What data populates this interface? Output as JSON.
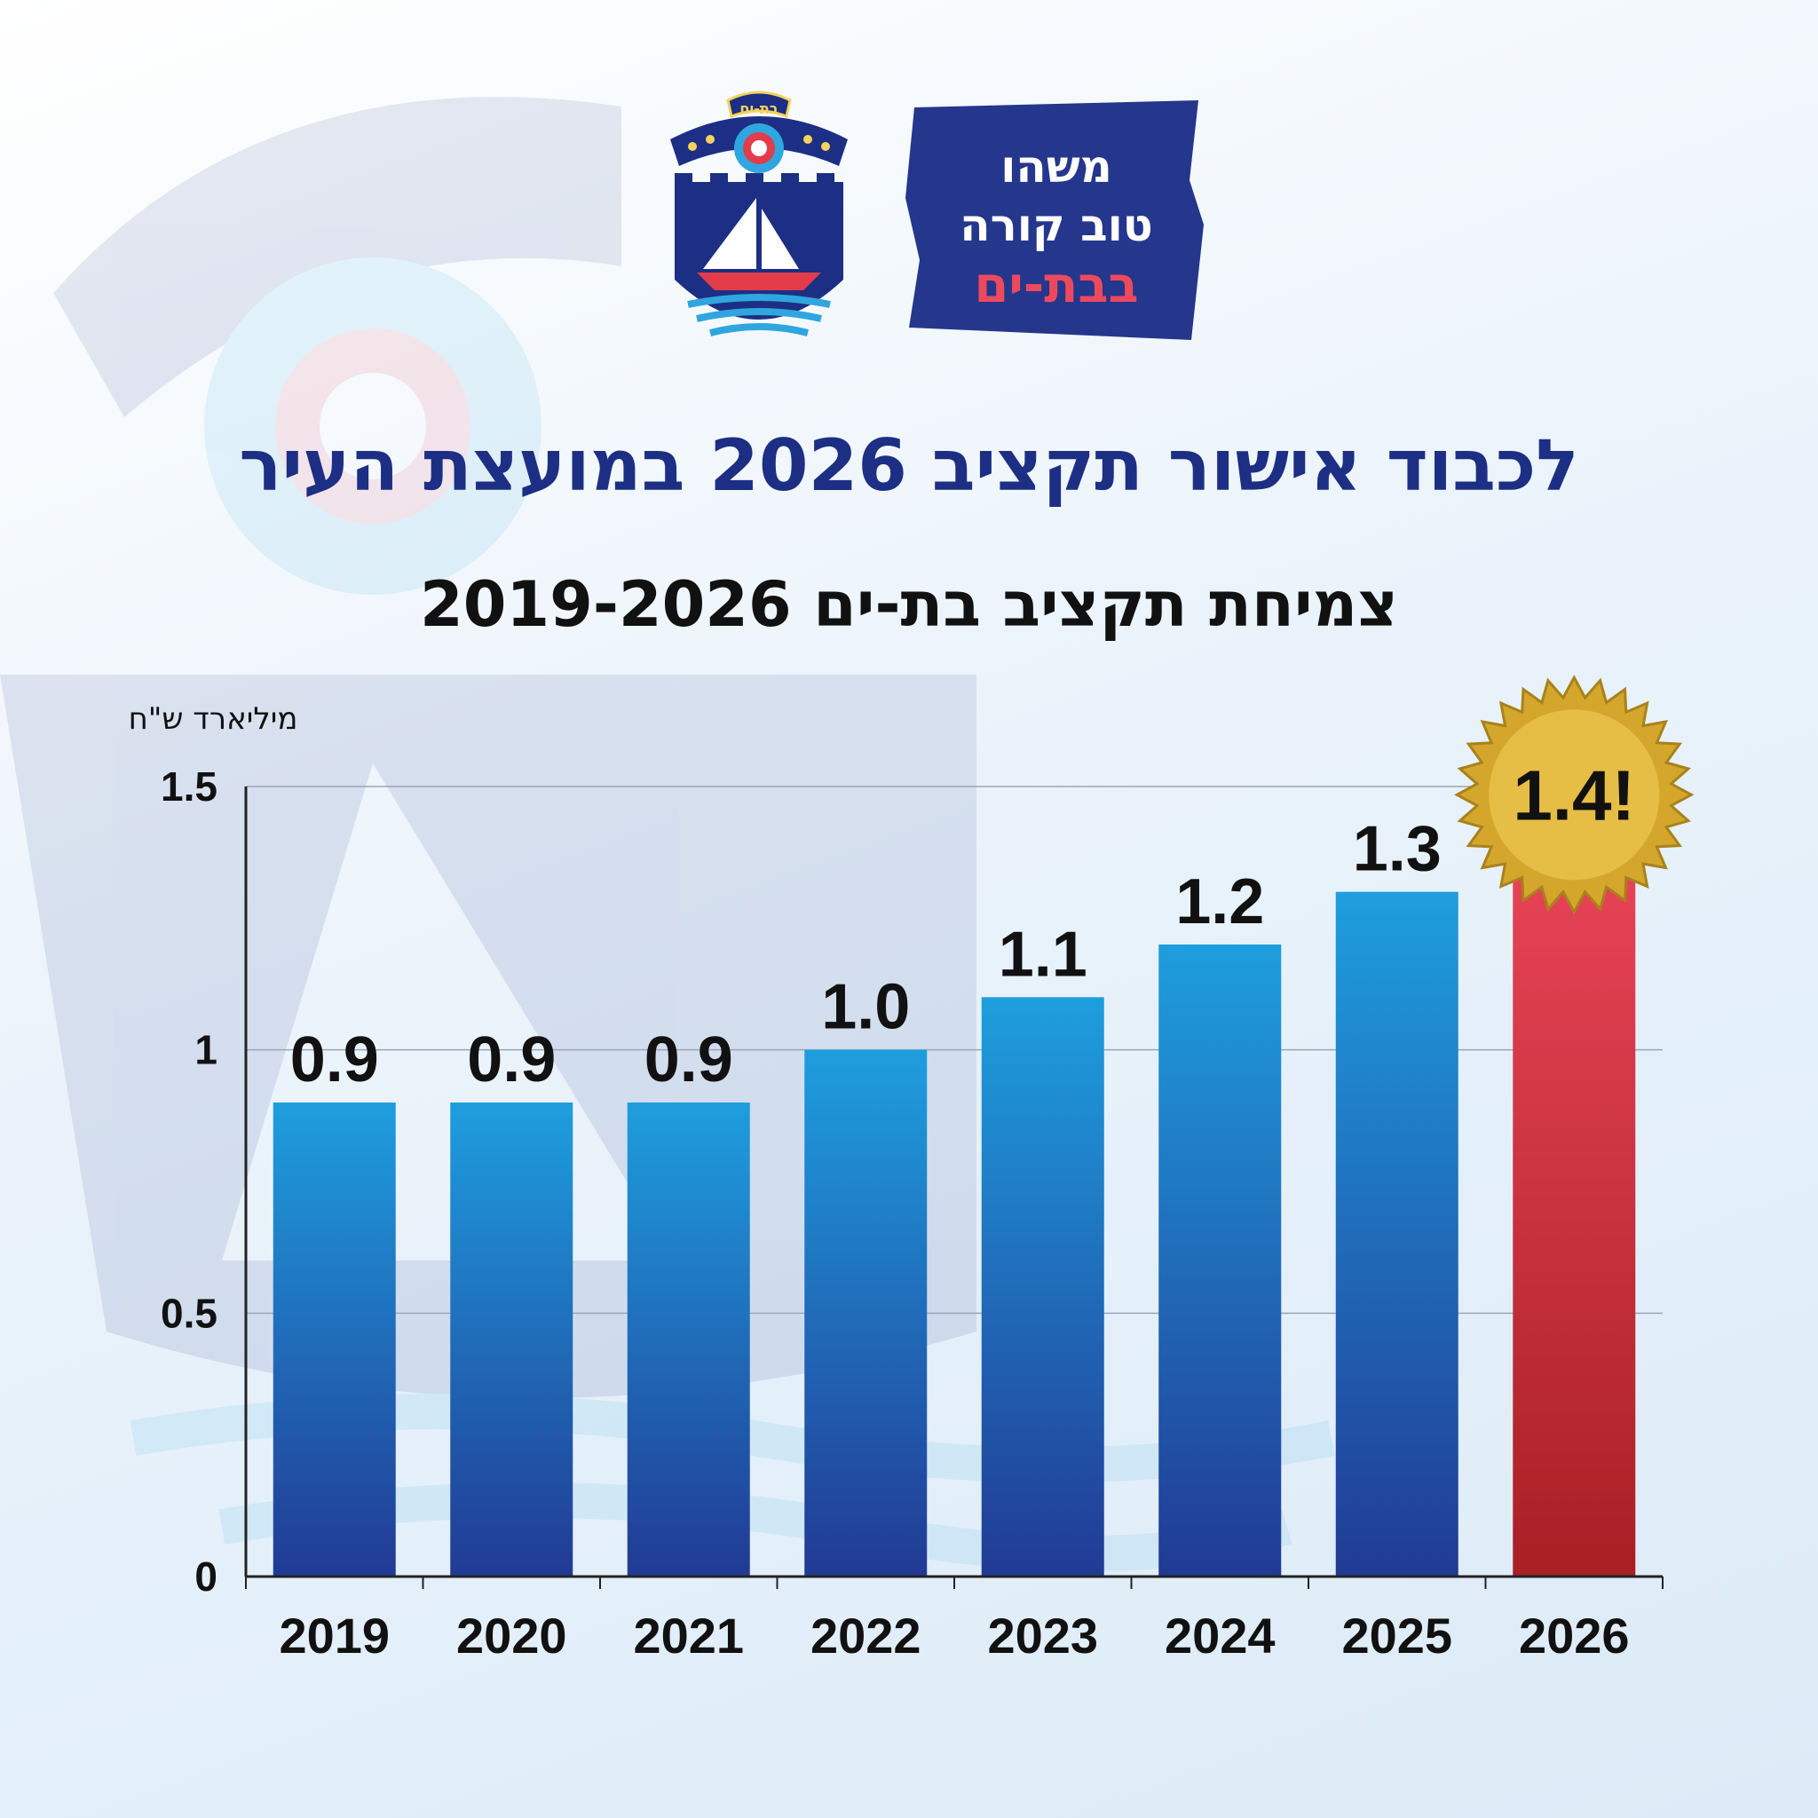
{
  "logo": {
    "crest_banner_text": "בת-ים",
    "slogan": {
      "line1": "משהו",
      "line2": "טוב קורה",
      "line3": "בבת-ים"
    },
    "colors": {
      "navy": "#1d2f84",
      "red": "#e43b4b",
      "sky": "#2fa6df",
      "yellow": "#f4d35e"
    }
  },
  "title": "לכבוד אישור תקציב 2026 במועצת העיר",
  "subtitle": "צמיחת תקציב בת-ים 2019-2026",
  "chart_data": {
    "type": "bar",
    "ylabel": "מיליארד ש\"ח",
    "xlabel": "",
    "categories": [
      "2019",
      "2020",
      "2021",
      "2022",
      "2023",
      "2024",
      "2025",
      "2026"
    ],
    "values": [
      0.9,
      0.9,
      0.9,
      1.0,
      1.1,
      1.2,
      1.3,
      1.4
    ],
    "value_labels": [
      "0.9",
      "0.9",
      "0.9",
      "1.0",
      "1.1",
      "1.2",
      "1.3",
      "1.4!"
    ],
    "ylim": [
      0,
      1.5
    ],
    "yticks": [
      0,
      0.5,
      1,
      1.5
    ],
    "ytick_labels": [
      "0",
      "0.5",
      "1",
      "1.5"
    ],
    "grid": true,
    "highlight_index": 7,
    "colors": {
      "bar_top": "#1e9ede",
      "bar_bottom": "#213a94",
      "highlight_top": "#e94558",
      "highlight_bottom": "#a81f24",
      "badge": "#d4a72c"
    }
  }
}
